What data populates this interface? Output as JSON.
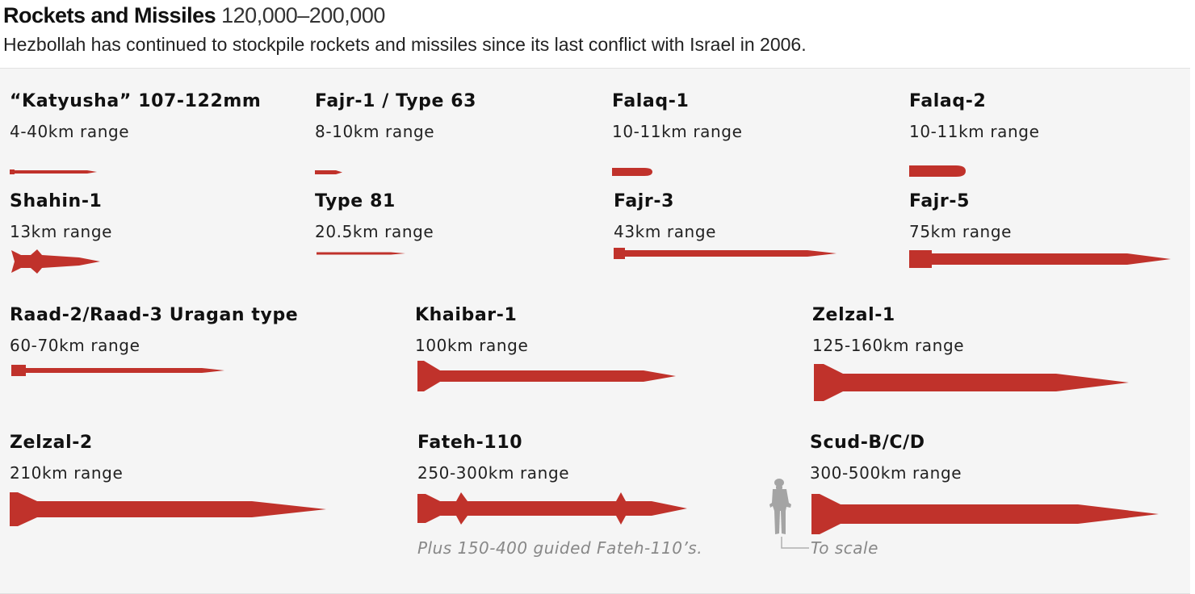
{
  "header": {
    "title": "Rockets and Missiles",
    "count": "120,000–200,000",
    "subtitle": "Hezbollah has continued to stockpile rockets and missiles since its last conflict with Israel in 2006."
  },
  "colors": {
    "rocket": "#c0322b",
    "panel": "#f5f5f5",
    "note": "#888888"
  },
  "rockets": [
    {
      "name": "“Katyusha” 107-122mm",
      "range": "4-40km range"
    },
    {
      "name": "Fajr-1 / Type 63",
      "range": "8-10km range"
    },
    {
      "name": "Falaq-1",
      "range": "10-11km range"
    },
    {
      "name": "Falaq-2",
      "range": "10-11km range"
    },
    {
      "name": "Shahin-1",
      "range": "13km range"
    },
    {
      "name": "Type 81",
      "range": "20.5km range"
    },
    {
      "name": "Fajr-3",
      "range": "43km range"
    },
    {
      "name": "Fajr-5",
      "range": "75km range"
    },
    {
      "name": "Raad-2/Raad-3 Uragan type",
      "range": "60-70km range"
    },
    {
      "name": "Khaibar-1",
      "range": "100km range"
    },
    {
      "name": "Zelzal-1",
      "range": "125-160km range"
    },
    {
      "name": "Zelzal-2",
      "range": "210km range"
    },
    {
      "name": "Fateh-110",
      "range": "250-300km range"
    },
    {
      "name": "Scud-B/C/D",
      "range": "300-500km range"
    }
  ],
  "notes": {
    "fateh": "Plus 150-400 guided Fateh-110’s.",
    "scale": "To scale"
  },
  "icons": {
    "soldier": "soldier-silhouette-icon"
  }
}
